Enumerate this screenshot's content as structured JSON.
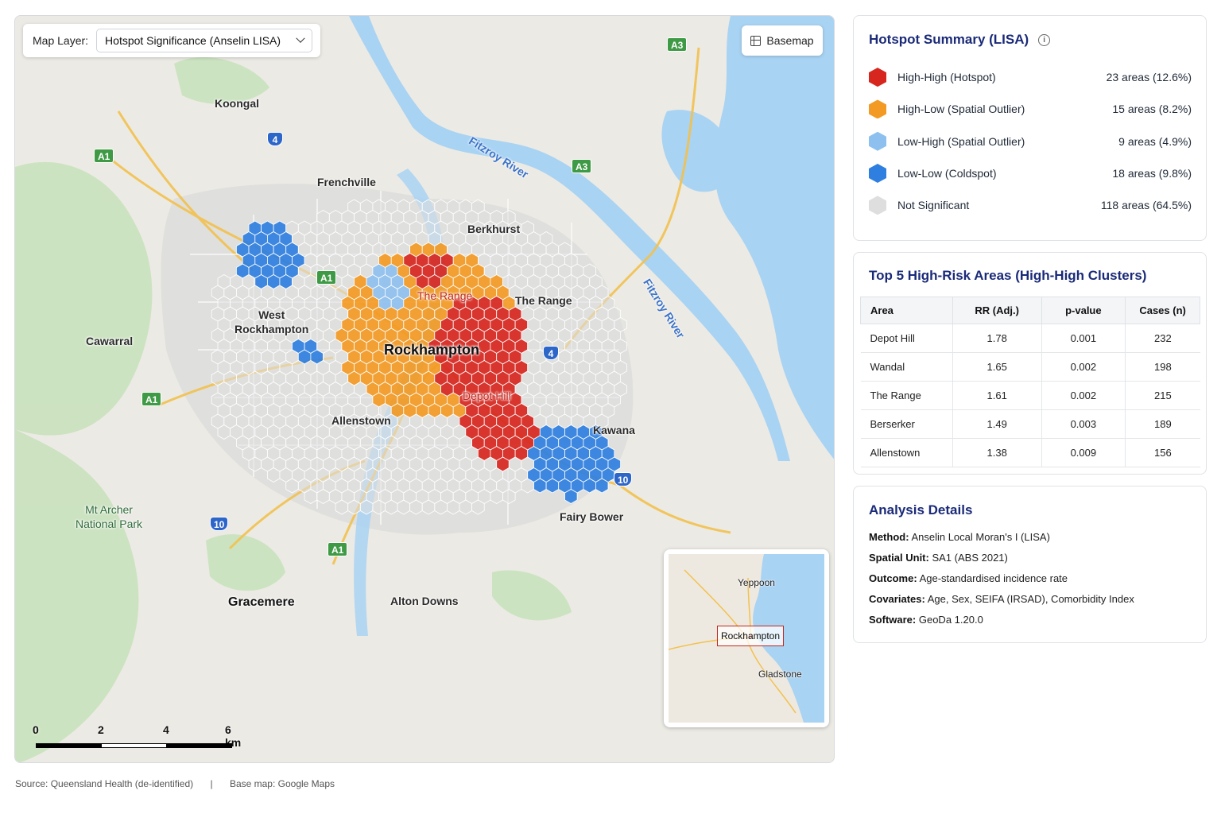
{
  "map": {
    "layer_label": "Map Layer:",
    "layer_value": "Hotspot Significance (Anselin LISA)",
    "basemap_label": "Basemap",
    "places": {
      "koongal": "Koongal",
      "frenchville": "Frenchville",
      "berkhurst": "Berkhurst",
      "the_range": "The Range",
      "west_rockhampton_1": "West",
      "west_rockhampton_2": "Rockhampton",
      "cawarral": "Cawarral",
      "rockhampton": "Rockhampton",
      "allenstown": "Allenstown",
      "kawana": "Kawana",
      "fairy_bower": "Fairy Bower",
      "mt_archer_1": "Mt Archer",
      "mt_archer_2": "National Park",
      "gracemere": "Gracemere",
      "alton_downs": "Alton Downs",
      "the_range_red": "The Range",
      "depot_hill_red": "Depot Hill"
    },
    "rivers": {
      "river_1": "Fitzroy River",
      "river_2": "Fitzroy River"
    },
    "shields": {
      "a3_top": "A3",
      "a3_mid": "A3",
      "a1_left": "A1",
      "a1_mid": "A1",
      "a1_sw": "A1",
      "a1_south": "A1",
      "r4_top": "4",
      "r4_mid": "4",
      "r10_east": "10",
      "r10_west": "10"
    },
    "scale": {
      "s0": "0",
      "s2": "2",
      "s4": "4",
      "s6": "6 km"
    },
    "inset": {
      "yeppoon": "Yeppoon",
      "rockhampton": "Rockhampton",
      "gladstone": "Gladstone"
    },
    "colors": {
      "high_high": "#d7261e",
      "high_low": "#f39a24",
      "low_high": "#8ec0ef",
      "low_low": "#2f7fe0",
      "not_significant": "#dedede",
      "water": "#a9d3f3",
      "land": "#eceae4",
      "park": "#c9e2bd"
    }
  },
  "footer": {
    "source": "Source: Queensland Health (de-identified)",
    "separator": "|",
    "basemap": "Base map: Google Maps"
  },
  "summary": {
    "title": "Hotspot Summary (LISA)",
    "items": [
      {
        "label": "High-High (Hotspot)",
        "count": "23 areas (12.6%)",
        "color": "#d7261e"
      },
      {
        "label": "High-Low (Spatial Outlier)",
        "count": "15 areas (8.2%)",
        "color": "#f39a24"
      },
      {
        "label": "Low-High (Spatial Outlier)",
        "count": "9 areas (4.9%)",
        "color": "#8ec0ef"
      },
      {
        "label": "Low-Low (Coldspot)",
        "count": "18 areas (9.8%)",
        "color": "#2f7fe0"
      },
      {
        "label": "Not Significant",
        "count": "118 areas (64.5%)",
        "color": "#dedede"
      }
    ]
  },
  "top5": {
    "title": "Top 5 High-Risk Areas (High-High Clusters)",
    "headers": [
      "Area",
      "RR (Adj.)",
      "p-value",
      "Cases (n)"
    ],
    "rows": [
      [
        "Depot Hill",
        "1.78",
        "0.001",
        "232"
      ],
      [
        "Wandal",
        "1.65",
        "0.002",
        "198"
      ],
      [
        "The Range",
        "1.61",
        "0.002",
        "215"
      ],
      [
        "Berserker",
        "1.49",
        "0.003",
        "189"
      ],
      [
        "Allenstown",
        "1.38",
        "0.009",
        "156"
      ]
    ]
  },
  "details": {
    "title": "Analysis Details",
    "items": [
      {
        "key": "Method:",
        "value": "Anselin Local Moran's I (LISA)"
      },
      {
        "key": "Spatial Unit:",
        "value": "SA1 (ABS 2021)"
      },
      {
        "key": "Outcome:",
        "value": "Age-standardised incidence rate"
      },
      {
        "key": "Covariates:",
        "value": "Age, Sex, SEIFA (IRSAD), Comorbidity Index"
      },
      {
        "key": "Software:",
        "value": "GeoDa 1.20.0"
      }
    ]
  }
}
